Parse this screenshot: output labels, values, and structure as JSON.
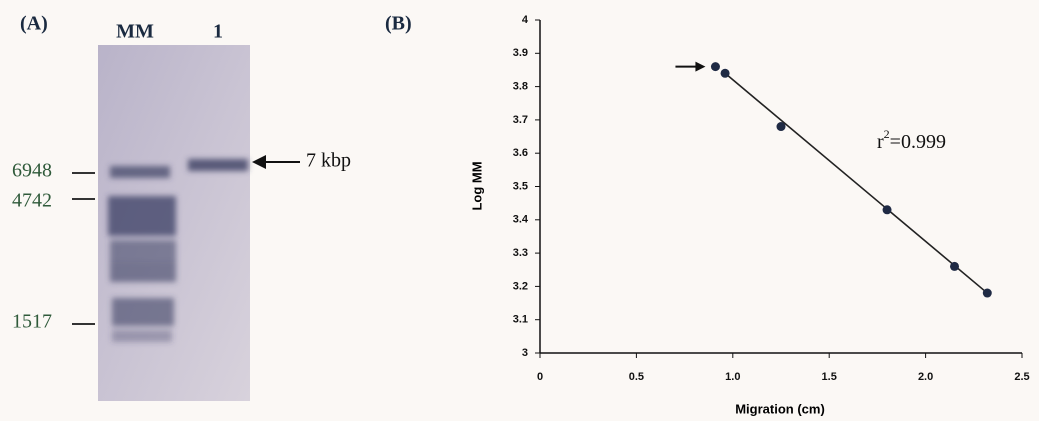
{
  "panel_a": {
    "label": "(A)",
    "lanes": [
      "MM",
      "1"
    ],
    "markers": [
      "6948",
      "4742",
      "1517"
    ],
    "band_label": "7 kbp"
  },
  "chart_data": {
    "type": "scatter",
    "panel_label": "(B)",
    "x": [
      0.91,
      0.96,
      1.25,
      1.8,
      2.15,
      2.32
    ],
    "series": [
      {
        "color": "#1f2a44",
        "values": [
          3.86,
          3.84,
          3.68,
          3.43,
          3.26,
          3.18
        ]
      }
    ],
    "xlim": [
      0,
      2.5
    ],
    "ylim": [
      3,
      4
    ],
    "xticks": [
      0,
      0.5,
      {
        "value": 1,
        "label": "1.0"
      },
      1.5,
      {
        "value": 2,
        "label": "2.0"
      },
      2.5
    ],
    "yticks": [
      3,
      3.1,
      3.2,
      3.3,
      3.4,
      3.5,
      3.6,
      3.7,
      3.8,
      3.9,
      4
    ],
    "xlabel": "Migration (cm)",
    "ylabel": "Log MM",
    "annotation": {
      "base": "r",
      "sup": "2",
      "rest": "=0.999"
    }
  }
}
